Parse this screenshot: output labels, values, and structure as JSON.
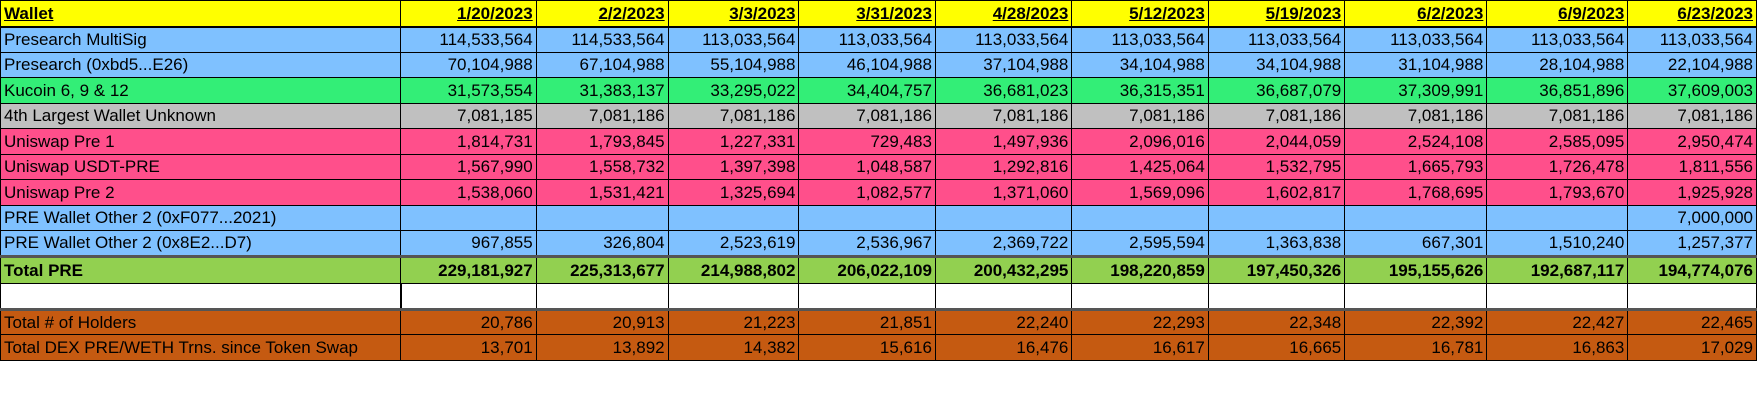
{
  "header": {
    "wallet_label": "Wallet",
    "dates": [
      "1/20/2023",
      "2/2/2023",
      "3/3/2023",
      "3/31/2023",
      "4/28/2023",
      "5/12/2023",
      "5/19/2023",
      "6/2/2023",
      "6/9/2023",
      "6/23/2023"
    ]
  },
  "colors": {
    "header": "#ffff00",
    "blue": "#7fc1ff",
    "green": "#33ee77",
    "gray": "#c0c0c0",
    "pink": "#ff4f8b",
    "total": "#92d050",
    "white": "#ffffff",
    "orange": "#c55a11"
  },
  "rows": [
    {
      "label": "Presearch MultiSig",
      "color": "blue",
      "values": [
        "114,533,564",
        "114,533,564",
        "113,033,564",
        "113,033,564",
        "113,033,564",
        "113,033,564",
        "113,033,564",
        "113,033,564",
        "113,033,564",
        "113,033,564"
      ]
    },
    {
      "label": "Presearch (0xbd5...E26)",
      "color": "blue",
      "values": [
        "70,104,988",
        "67,104,988",
        "55,104,988",
        "46,104,988",
        "37,104,988",
        "34,104,988",
        "34,104,988",
        "31,104,988",
        "28,104,988",
        "22,104,988"
      ]
    },
    {
      "label": "Kucoin 6, 9 & 12",
      "color": "green",
      "values": [
        "31,573,554",
        "31,383,137",
        "33,295,022",
        "34,404,757",
        "36,681,023",
        "36,315,351",
        "36,687,079",
        "37,309,991",
        "36,851,896",
        "37,609,003"
      ]
    },
    {
      "label": "4th Largest Wallet Unknown",
      "color": "gray",
      "values": [
        "7,081,185",
        "7,081,186",
        "7,081,186",
        "7,081,186",
        "7,081,186",
        "7,081,186",
        "7,081,186",
        "7,081,186",
        "7,081,186",
        "7,081,186"
      ]
    },
    {
      "label": "Uniswap Pre 1",
      "color": "pink",
      "values": [
        "1,814,731",
        "1,793,845",
        "1,227,331",
        "729,483",
        "1,497,936",
        "2,096,016",
        "2,044,059",
        "2,524,108",
        "2,585,095",
        "2,950,474"
      ]
    },
    {
      "label": "Uniswap USDT-PRE",
      "color": "pink",
      "values": [
        "1,567,990",
        "1,558,732",
        "1,397,398",
        "1,048,587",
        "1,292,816",
        "1,425,064",
        "1,532,795",
        "1,665,793",
        "1,726,478",
        "1,811,556"
      ]
    },
    {
      "label": "Uniswap Pre 2",
      "color": "pink",
      "values": [
        "1,538,060",
        "1,531,421",
        "1,325,694",
        "1,082,577",
        "1,371,060",
        "1,569,096",
        "1,602,817",
        "1,768,695",
        "1,793,670",
        "1,925,928"
      ]
    },
    {
      "label": "PRE Wallet Other 2 (0xF077...2021)",
      "color": "blue",
      "values": [
        "",
        "",
        "",
        "",
        "",
        "",
        "",
        "",
        "",
        "7,000,000"
      ]
    },
    {
      "label": "PRE Wallet Other 2 (0x8E2...D7)",
      "color": "blue",
      "values": [
        "967,855",
        "326,804",
        "2,523,619",
        "2,536,967",
        "2,369,722",
        "2,595,594",
        "1,363,838",
        "667,301",
        "1,510,240",
        "1,257,377"
      ]
    }
  ],
  "total": {
    "label": "Total PRE",
    "color": "total",
    "values": [
      "229,181,927",
      "225,313,677",
      "214,988,802",
      "206,022,109",
      "200,432,295",
      "198,220,859",
      "197,450,326",
      "195,155,626",
      "192,687,117",
      "194,774,076"
    ]
  },
  "stats": [
    {
      "label": "Total # of Holders",
      "color": "orange",
      "values": [
        "20,786",
        "20,913",
        "21,223",
        "21,851",
        "22,240",
        "22,293",
        "22,348",
        "22,392",
        "22,427",
        "22,465"
      ]
    },
    {
      "label": "Total DEX PRE/WETH Trns. since Token Swap",
      "color": "orange",
      "values": [
        "13,701",
        "13,892",
        "14,382",
        "15,616",
        "16,476",
        "16,617",
        "16,665",
        "16,781",
        "16,863",
        "17,029"
      ]
    }
  ]
}
